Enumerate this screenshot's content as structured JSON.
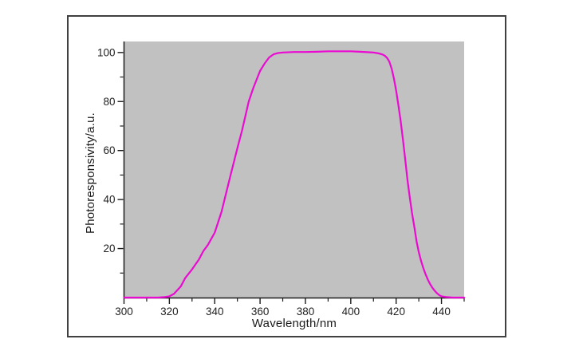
{
  "figure": {
    "background_color": "#ffffff",
    "frame_color": "#404040"
  },
  "chart_data": {
    "type": "line",
    "title": "",
    "xlabel": "Wavelength/nm",
    "ylabel": "Photoresponsivity/a.u.",
    "xlim": [
      300,
      450
    ],
    "ylim": [
      0,
      104.5
    ],
    "x_major_ticks": [
      300,
      320,
      340,
      360,
      380,
      400,
      420,
      440
    ],
    "x_minor_ticks": [
      310,
      330,
      350,
      370,
      390,
      410,
      430,
      450
    ],
    "y_major_ticks": [
      20,
      40,
      60,
      80,
      100
    ],
    "y_minor_ticks": [
      10,
      30,
      50,
      70,
      90
    ],
    "grid": false,
    "legend": "none",
    "plot_bg_color": "#c1c1c1",
    "line_color": "#ea0ad2",
    "axis_color": "#1c1c1c",
    "tick_label_color": "#1f1f1f",
    "series": [
      {
        "name": "photoresponsivity",
        "x": [
          300,
          305,
          310,
          315,
          318,
          320,
          322,
          325,
          327,
          330,
          333,
          335,
          337,
          340,
          343,
          345,
          347,
          350,
          352,
          355,
          357,
          360,
          362,
          364,
          366,
          368,
          370,
          375,
          380,
          385,
          390,
          395,
          400,
          404,
          408,
          410,
          412,
          414,
          415,
          416,
          417,
          418,
          419,
          420,
          421,
          422,
          423,
          424,
          425,
          426,
          427,
          428,
          429,
          430,
          431,
          432,
          433,
          434,
          435,
          436,
          437,
          438,
          439,
          440,
          442,
          445,
          450
        ],
        "y": [
          0,
          0,
          0,
          0,
          0.2,
          0.5,
          1.5,
          4.5,
          8,
          11.5,
          15.5,
          19,
          21.5,
          26.5,
          35,
          42.5,
          50,
          61,
          68,
          80,
          85.5,
          92.5,
          95.5,
          98,
          99.3,
          99.8,
          100,
          100.2,
          100.2,
          100.3,
          100.5,
          100.5,
          100.5,
          100.3,
          100.1,
          100,
          99.7,
          99.2,
          98.7,
          97.8,
          96.3,
          93.5,
          89.5,
          84.5,
          78.5,
          72,
          64.5,
          56.5,
          48,
          41,
          34.5,
          29,
          23,
          18.5,
          15,
          12,
          9.5,
          7.3,
          5.5,
          4,
          2.8,
          1.8,
          1,
          0.5,
          0.2,
          0,
          0
        ]
      }
    ]
  }
}
